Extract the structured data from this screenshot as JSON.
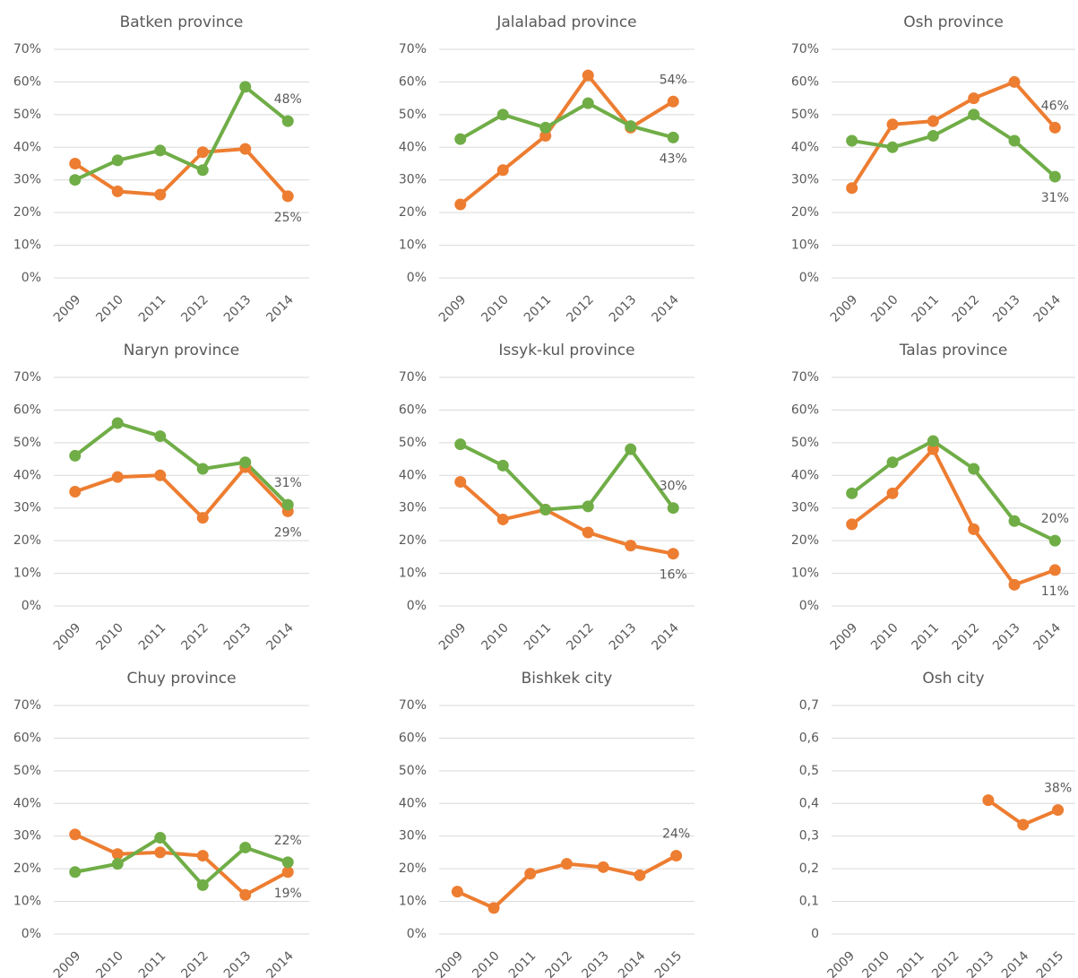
{
  "chart_data": [
    {
      "type": "line",
      "title": "Batken province",
      "categories": [
        "2009",
        "2010",
        "2011",
        "2012",
        "2013",
        "2014"
      ],
      "series": [
        {
          "color": "#ED7D31",
          "values": [
            35,
            26.5,
            25.5,
            38.5,
            39.5,
            25
          ],
          "value_labels": [
            null,
            null,
            null,
            null,
            null,
            "25%"
          ]
        },
        {
          "color": "#70AD47",
          "values": [
            30,
            36,
            39,
            33,
            58.5,
            48
          ],
          "value_labels": [
            null,
            null,
            null,
            null,
            null,
            "48%"
          ]
        }
      ],
      "ylim": [
        0,
        70
      ],
      "yticks": [
        {
          "value": 0,
          "label": "0%"
        },
        {
          "value": 10,
          "label": "10%"
        },
        {
          "value": 20,
          "label": "20%"
        },
        {
          "value": 30,
          "label": "30%"
        },
        {
          "value": 40,
          "label": "40%"
        },
        {
          "value": 50,
          "label": "50%"
        },
        {
          "value": 60,
          "label": "60%"
        },
        {
          "value": 70,
          "label": "70%"
        }
      ],
      "grid": true
    },
    {
      "type": "line",
      "title": "Jalalabad province",
      "categories": [
        "2009",
        "2010",
        "2011",
        "2012",
        "2013",
        "2014"
      ],
      "series": [
        {
          "color": "#ED7D31",
          "values": [
            22.5,
            33,
            43.5,
            62,
            46,
            54
          ],
          "value_labels": [
            null,
            null,
            null,
            null,
            null,
            "54%"
          ]
        },
        {
          "color": "#70AD47",
          "values": [
            42.5,
            50,
            46,
            53.5,
            46.5,
            43
          ],
          "value_labels": [
            null,
            null,
            null,
            null,
            null,
            "43%"
          ]
        }
      ],
      "ylim": [
        0,
        70
      ],
      "yticks": [
        {
          "value": 0,
          "label": "0%"
        },
        {
          "value": 10,
          "label": "10%"
        },
        {
          "value": 20,
          "label": "20%"
        },
        {
          "value": 30,
          "label": "30%"
        },
        {
          "value": 40,
          "label": "40%"
        },
        {
          "value": 50,
          "label": "50%"
        },
        {
          "value": 60,
          "label": "60%"
        },
        {
          "value": 70,
          "label": "70%"
        }
      ],
      "grid": true
    },
    {
      "type": "line",
      "title": "Osh province",
      "categories": [
        "2009",
        "2010",
        "2011",
        "2012",
        "2013",
        "2014"
      ],
      "series": [
        {
          "color": "#ED7D31",
          "values": [
            27.5,
            47,
            48,
            55,
            60,
            46
          ],
          "value_labels": [
            null,
            null,
            null,
            null,
            null,
            "46%"
          ]
        },
        {
          "color": "#70AD47",
          "values": [
            42,
            40,
            43.5,
            50,
            42,
            31
          ],
          "value_labels": [
            null,
            null,
            null,
            null,
            null,
            "31%"
          ]
        }
      ],
      "ylim": [
        0,
        70
      ],
      "yticks": [
        {
          "value": 0,
          "label": "0%"
        },
        {
          "value": 10,
          "label": "10%"
        },
        {
          "value": 20,
          "label": "20%"
        },
        {
          "value": 30,
          "label": "30%"
        },
        {
          "value": 40,
          "label": "40%"
        },
        {
          "value": 50,
          "label": "50%"
        },
        {
          "value": 60,
          "label": "60%"
        },
        {
          "value": 70,
          "label": "70%"
        }
      ],
      "grid": true
    },
    {
      "type": "line",
      "title": "Naryn province",
      "categories": [
        "2009",
        "2010",
        "2011",
        "2012",
        "2013",
        "2014"
      ],
      "series": [
        {
          "color": "#ED7D31",
          "values": [
            35,
            39.5,
            40,
            27,
            42.5,
            29
          ],
          "value_labels": [
            null,
            null,
            null,
            null,
            null,
            "29%"
          ]
        },
        {
          "color": "#70AD47",
          "values": [
            46,
            56,
            52,
            42,
            44,
            31
          ],
          "value_labels": [
            null,
            null,
            null,
            null,
            null,
            "31%"
          ]
        }
      ],
      "ylim": [
        0,
        70
      ],
      "yticks": [
        {
          "value": 0,
          "label": "0%"
        },
        {
          "value": 10,
          "label": "10%"
        },
        {
          "value": 20,
          "label": "20%"
        },
        {
          "value": 30,
          "label": "30%"
        },
        {
          "value": 40,
          "label": "40%"
        },
        {
          "value": 50,
          "label": "50%"
        },
        {
          "value": 60,
          "label": "60%"
        },
        {
          "value": 70,
          "label": "70%"
        }
      ],
      "grid": true
    },
    {
      "type": "line",
      "title": "Issyk-kul province",
      "categories": [
        "2009",
        "2010",
        "2011",
        "2012",
        "2013",
        "2014"
      ],
      "series": [
        {
          "color": "#ED7D31",
          "values": [
            38,
            26.5,
            29.5,
            22.5,
            18.5,
            16
          ],
          "value_labels": [
            null,
            null,
            null,
            null,
            null,
            "16%"
          ]
        },
        {
          "color": "#70AD47",
          "values": [
            49.5,
            43,
            29.5,
            30.5,
            48,
            30
          ],
          "value_labels": [
            null,
            null,
            null,
            null,
            null,
            "30%"
          ]
        }
      ],
      "ylim": [
        0,
        70
      ],
      "yticks": [
        {
          "value": 0,
          "label": "0%"
        },
        {
          "value": 10,
          "label": "10%"
        },
        {
          "value": 20,
          "label": "20%"
        },
        {
          "value": 30,
          "label": "30%"
        },
        {
          "value": 40,
          "label": "40%"
        },
        {
          "value": 50,
          "label": "50%"
        },
        {
          "value": 60,
          "label": "60%"
        },
        {
          "value": 70,
          "label": "70%"
        }
      ],
      "grid": true
    },
    {
      "type": "line",
      "title": "Talas province",
      "categories": [
        "2009",
        "2010",
        "2011",
        "2012",
        "2013",
        "2014"
      ],
      "series": [
        {
          "color": "#ED7D31",
          "values": [
            25,
            34.5,
            48,
            23.5,
            6.5,
            11
          ],
          "value_labels": [
            null,
            null,
            null,
            null,
            null,
            "11%"
          ]
        },
        {
          "color": "#70AD47",
          "values": [
            34.5,
            44,
            50.5,
            42,
            26,
            20
          ],
          "value_labels": [
            null,
            null,
            null,
            null,
            null,
            "20%"
          ]
        }
      ],
      "ylim": [
        0,
        70
      ],
      "yticks": [
        {
          "value": 0,
          "label": "0%"
        },
        {
          "value": 10,
          "label": "10%"
        },
        {
          "value": 20,
          "label": "20%"
        },
        {
          "value": 30,
          "label": "30%"
        },
        {
          "value": 40,
          "label": "40%"
        },
        {
          "value": 50,
          "label": "50%"
        },
        {
          "value": 60,
          "label": "60%"
        },
        {
          "value": 70,
          "label": "70%"
        }
      ],
      "grid": true
    },
    {
      "type": "line",
      "title": "Chuy province",
      "categories": [
        "2009",
        "2010",
        "2011",
        "2012",
        "2013",
        "2014"
      ],
      "series": [
        {
          "color": "#ED7D31",
          "values": [
            30.5,
            24.5,
            25,
            24,
            12,
            19
          ],
          "value_labels": [
            null,
            null,
            null,
            null,
            null,
            "19%"
          ]
        },
        {
          "color": "#70AD47",
          "values": [
            19,
            21.5,
            29.5,
            15,
            26.5,
            22
          ],
          "value_labels": [
            null,
            null,
            null,
            null,
            null,
            "22%"
          ]
        }
      ],
      "ylim": [
        0,
        70
      ],
      "yticks": [
        {
          "value": 0,
          "label": "0%"
        },
        {
          "value": 10,
          "label": "10%"
        },
        {
          "value": 20,
          "label": "20%"
        },
        {
          "value": 30,
          "label": "30%"
        },
        {
          "value": 40,
          "label": "40%"
        },
        {
          "value": 50,
          "label": "50%"
        },
        {
          "value": 60,
          "label": "60%"
        },
        {
          "value": 70,
          "label": "70%"
        }
      ],
      "grid": true
    },
    {
      "type": "line",
      "title": "Bishkek city",
      "categories": [
        "2009",
        "2010",
        "2011",
        "2012",
        "2013",
        "2014",
        "2015"
      ],
      "series": [
        {
          "color": "#ED7D31",
          "values": [
            13,
            8,
            18.5,
            21.5,
            20.5,
            18,
            24
          ],
          "value_labels": [
            null,
            null,
            null,
            null,
            null,
            null,
            "24%"
          ]
        }
      ],
      "ylim": [
        0,
        70
      ],
      "yticks": [
        {
          "value": 0,
          "label": "0%"
        },
        {
          "value": 10,
          "label": "10%"
        },
        {
          "value": 20,
          "label": "20%"
        },
        {
          "value": 30,
          "label": "30%"
        },
        {
          "value": 40,
          "label": "40%"
        },
        {
          "value": 50,
          "label": "50%"
        },
        {
          "value": 60,
          "label": "60%"
        },
        {
          "value": 70,
          "label": "70%"
        }
      ],
      "grid": true
    },
    {
      "type": "line",
      "title": "Osh city",
      "categories": [
        "2009",
        "2010",
        "2011",
        "2012",
        "2013",
        "2014",
        "2015"
      ],
      "series": [
        {
          "color": "#ED7D31",
          "values": [
            null,
            null,
            null,
            null,
            0.41,
            0.335,
            0.38
          ],
          "value_labels": [
            null,
            null,
            null,
            null,
            null,
            null,
            "38%"
          ]
        }
      ],
      "ylim": [
        0,
        0.7
      ],
      "yticks": [
        0,
        {
          "value": 0.1,
          "label": "0,1"
        },
        {
          "value": 0.2,
          "label": "0,2"
        },
        {
          "value": 0.3,
          "label": "0,3"
        },
        {
          "value": 0.4,
          "label": "0,4"
        },
        {
          "value": 0.5,
          "label": "0,5"
        },
        {
          "value": 0.6,
          "label": "0,6"
        },
        {
          "value": 0.7,
          "label": "0,7"
        }
      ],
      "grid": true
    }
  ]
}
